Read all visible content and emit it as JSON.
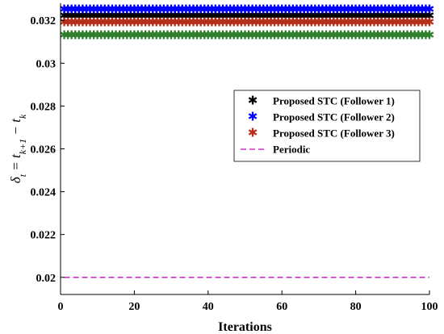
{
  "chart_data": {
    "type": "scatter",
    "xlabel": "Iterations",
    "ylabel": "δ_t = t_{k+1} − t_k",
    "xlim": [
      0,
      100
    ],
    "ylim": [
      0.0192,
      0.0328
    ],
    "xticks": [
      "0",
      "20",
      "40",
      "60",
      "80",
      "100"
    ],
    "yticks": [
      "0.02",
      "0.022",
      "0.024",
      "0.026",
      "0.028",
      "0.03",
      "0.032"
    ],
    "grid": false,
    "legend_position": "right",
    "x": {
      "start": 1,
      "end": 100,
      "step": 1
    },
    "series": [
      {
        "name": "Proposed STC (Follower 1)",
        "color": "#000000",
        "marker": "star",
        "value": 0.0322
      },
      {
        "name": "Proposed STC (Follower 2)",
        "color": "#0000ff",
        "marker": "star",
        "value": 0.0325
      },
      {
        "name": "Proposed STC (Follower 3)",
        "color": "#b5301a",
        "marker": "star",
        "value": 0.0319
      },
      {
        "name": "Periodic",
        "color": "#cc33cc",
        "marker": "dashed-line",
        "value": 0.02
      }
    ],
    "extra_series": [
      {
        "color": "#2f7f2f",
        "marker": "star",
        "value": 0.0313,
        "x_from": 1,
        "x_to": 100
      }
    ]
  }
}
